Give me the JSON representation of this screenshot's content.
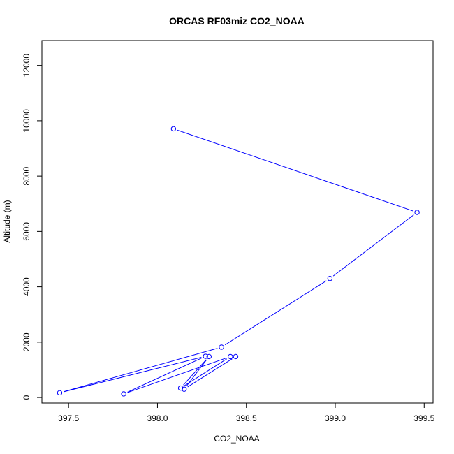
{
  "chart_data": {
    "type": "line",
    "title": "ORCAS RF03miz CO2_NOAA",
    "xlabel": "CO2_NOAA",
    "ylabel": "Altitude (m)",
    "xlim": [
      397.35,
      399.55
    ],
    "ylim": [
      -200,
      12900
    ],
    "x_ticks": [
      397.5,
      398.0,
      398.5,
      399.0,
      399.5
    ],
    "x_tick_labels": [
      "397.5",
      "398.0",
      "398.5",
      "399.0",
      "399.5"
    ],
    "y_ticks": [
      0,
      2000,
      4000,
      6000,
      8000,
      10000,
      12000
    ],
    "y_tick_labels": [
      "0",
      "2000",
      "4000",
      "6000",
      "8000",
      "10000",
      "12000"
    ],
    "grid": false,
    "legend": "none",
    "series": [
      {
        "color": "#0000ff",
        "marker": "open-circle",
        "points": [
          {
            "x": 398.09,
            "y": 9710
          },
          {
            "x": 399.46,
            "y": 6690
          },
          {
            "x": 398.97,
            "y": 4300
          },
          {
            "x": 398.36,
            "y": 1820
          },
          {
            "x": 397.45,
            "y": 170
          },
          {
            "x": 398.27,
            "y": 1490
          },
          {
            "x": 397.81,
            "y": 130
          },
          {
            "x": 398.41,
            "y": 1480
          },
          {
            "x": 398.13,
            "y": 340
          },
          {
            "x": 398.29,
            "y": 1480
          },
          {
            "x": 398.15,
            "y": 300
          },
          {
            "x": 398.44,
            "y": 1480
          }
        ]
      }
    ]
  }
}
